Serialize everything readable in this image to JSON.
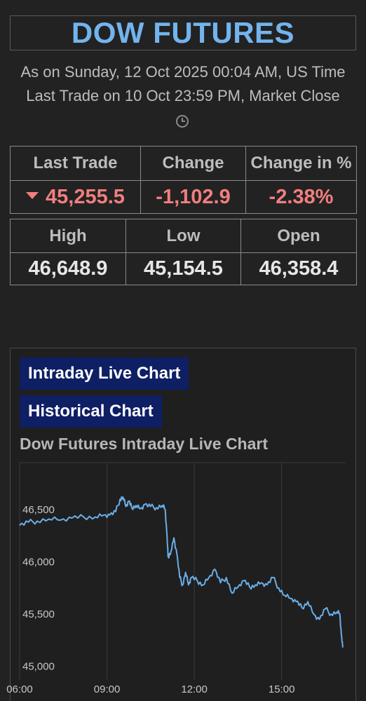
{
  "header": {
    "title": "DOW FUTURES",
    "as_on": "As on Sunday, 12 Oct 2025 00:04 AM, US Time",
    "last_trade_note": "Last Trade on 10 Oct 23:59 PM, Market Close",
    "clock_icon": "clock-icon"
  },
  "quote": {
    "headers": [
      "Last Trade",
      "Change",
      "Change in %"
    ],
    "last_trade": "45,255.5",
    "change": "-1,102.9",
    "change_pct": "-2.38%",
    "direction_icon": "down-triangle-icon",
    "negative_color": "#f27e7e"
  },
  "range": {
    "headers": [
      "High",
      "Low",
      "Open"
    ],
    "high": "46,648.9",
    "low": "45,154.5",
    "open": "46,358.4"
  },
  "tabs": {
    "intraday": "Intraday Live Chart",
    "historical": "Historical Chart"
  },
  "chart_data": {
    "type": "line",
    "title": "Dow Futures Intraday Live Chart",
    "xlabel": "",
    "ylabel": "",
    "y_ticks": [
      45000,
      45500,
      46000,
      46500
    ],
    "y_tick_labels": [
      "45,000",
      "45,500",
      "46,000",
      "46,500"
    ],
    "x_tick_labels": [
      "06:00",
      "09:00",
      "12:00",
      "15:00"
    ],
    "x_ticks_hours": [
      6,
      9,
      12,
      15
    ],
    "xlim_hours": [
      6,
      17.2
    ],
    "ylim": [
      44950,
      46950
    ],
    "line_color": "#6aaee8",
    "grid": "vertical",
    "series": [
      {
        "x": [
          6.0,
          6.3,
          6.6,
          7.0,
          7.4,
          7.8,
          8.2,
          8.6,
          8.9,
          9.1,
          9.3,
          9.45,
          9.55,
          9.65,
          9.75,
          9.85,
          10.0,
          10.15,
          10.3,
          10.5,
          10.7,
          10.9,
          11.0,
          11.05,
          11.1,
          11.2,
          11.3,
          11.4,
          11.5,
          11.6,
          11.7,
          11.8,
          11.9,
          12.1,
          12.3,
          12.5,
          12.7,
          12.9,
          13.1,
          13.3,
          13.5,
          13.7,
          13.9,
          14.1,
          14.3,
          14.5,
          14.7,
          14.9,
          15.1,
          15.3,
          15.5,
          15.7,
          15.9,
          16.1,
          16.3,
          16.5,
          16.7,
          16.9,
          17.0,
          17.05,
          17.1
        ],
        "y": [
          46350,
          46380,
          46390,
          46410,
          46400,
          46420,
          46430,
          46430,
          46450,
          46450,
          46480,
          46600,
          46620,
          46530,
          46580,
          46520,
          46540,
          46510,
          46550,
          46530,
          46520,
          46540,
          46500,
          46300,
          46050,
          46100,
          46230,
          46080,
          45850,
          45780,
          45900,
          45780,
          45850,
          45820,
          45780,
          45850,
          45930,
          45800,
          45850,
          45700,
          45760,
          45820,
          45760,
          45780,
          45800,
          45780,
          45850,
          45750,
          45680,
          45650,
          45620,
          45560,
          45620,
          45500,
          45450,
          45550,
          45500,
          45520,
          45500,
          45300,
          45180
        ]
      }
    ]
  }
}
